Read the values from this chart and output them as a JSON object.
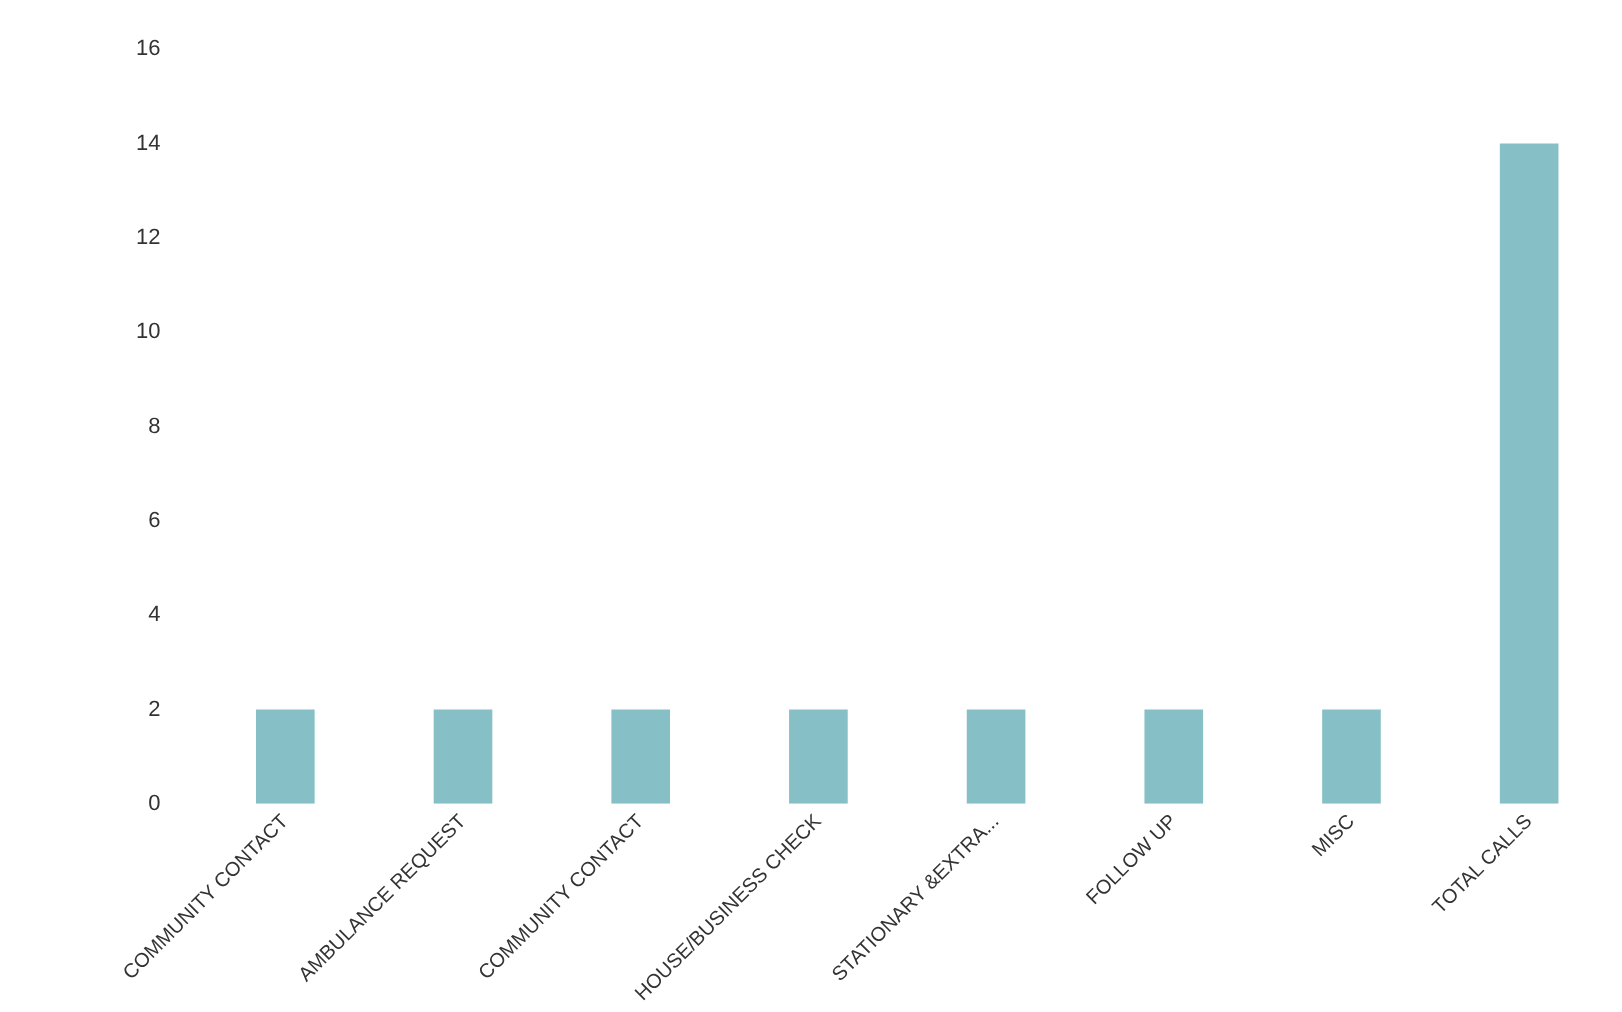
{
  "chart_data": {
    "type": "bar",
    "categories": [
      "COMMUNITY CONTACT",
      "AMBULANCE REQUEST",
      "COMMUNITY CONTACT",
      "HOUSE/BUSINESS CHECK",
      "STATIONARY &EXTRA...",
      "FOLLOW UP",
      "MISC",
      "TOTAL CALLS"
    ],
    "values": [
      2,
      2,
      2,
      2,
      2,
      2,
      2,
      14
    ],
    "color": "#86c0c6",
    "ylim": [
      0,
      16
    ],
    "yticks": [
      0,
      2,
      4,
      6,
      8,
      10,
      12,
      14,
      16
    ],
    "grid": false,
    "legend": false
  }
}
